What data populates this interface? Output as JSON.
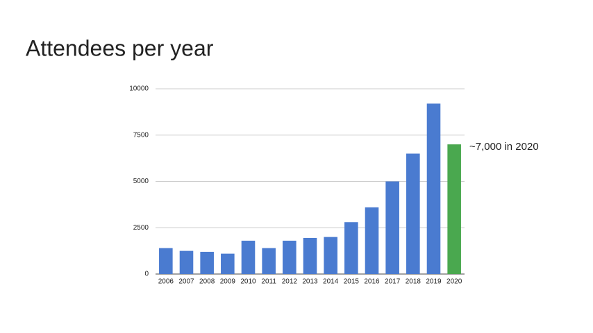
{
  "chart_data": {
    "type": "bar",
    "title": "Attendees per year",
    "categories": [
      "2006",
      "2007",
      "2008",
      "2009",
      "2010",
      "2011",
      "2012",
      "2013",
      "2014",
      "2015",
      "2016",
      "2017",
      "2018",
      "2019",
      "2020"
    ],
    "values": [
      1400,
      1250,
      1200,
      1100,
      1800,
      1400,
      1800,
      1950,
      2000,
      2800,
      3600,
      5000,
      6500,
      9200,
      7000
    ],
    "colors": [
      "#4a7bd0",
      "#4a7bd0",
      "#4a7bd0",
      "#4a7bd0",
      "#4a7bd0",
      "#4a7bd0",
      "#4a7bd0",
      "#4a7bd0",
      "#4a7bd0",
      "#4a7bd0",
      "#4a7bd0",
      "#4a7bd0",
      "#4a7bd0",
      "#4a7bd0",
      "#4aa84f"
    ],
    "ylim": [
      0,
      10000
    ],
    "yticks": [
      0,
      2500,
      5000,
      7500,
      10000
    ],
    "grid": true,
    "annotation": "~7,000 in 2020"
  }
}
